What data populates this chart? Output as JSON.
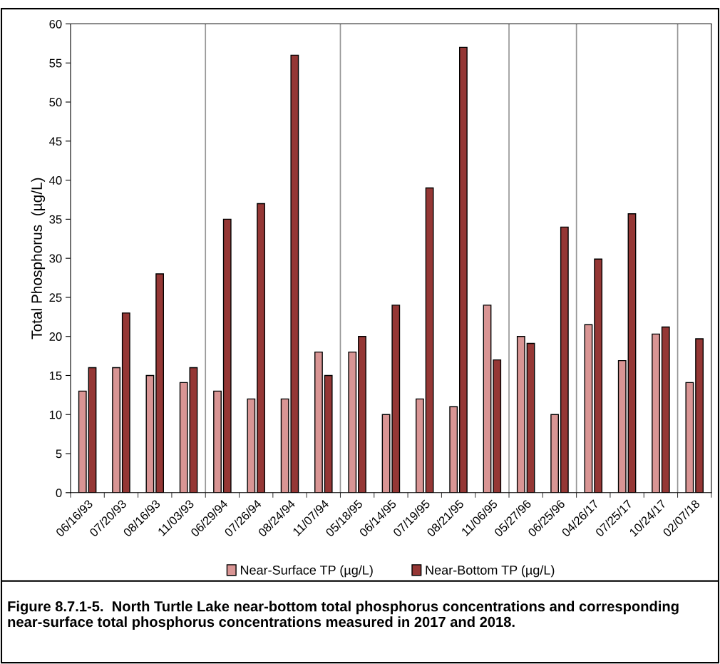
{
  "chart_data": {
    "type": "bar",
    "ylabel": "Total Phosphorus  (µg/L)",
    "categories": [
      "06/16/93",
      "07/20/93",
      "08/16/93",
      "11/03/93",
      "06/29/94",
      "07/26/94",
      "08/24/94",
      "11/07/94",
      "05/18/95",
      "06/14/95",
      "07/19/95",
      "08/21/95",
      "11/06/95",
      "05/27/96",
      "06/25/96",
      "04/26/17",
      "07/25/17",
      "10/24/17",
      "02/07/18"
    ],
    "series": [
      {
        "name": "Near-Surface TP (µg/L)",
        "color": "#d99594",
        "values": [
          13,
          16,
          15,
          14.1,
          13,
          12,
          12,
          18,
          18,
          10,
          12,
          11,
          24,
          20,
          10,
          21.5,
          16.9,
          20.3,
          14.1
        ]
      },
      {
        "name": "Near-Bottom TP (µg/L)",
        "color": "#953735",
        "values": [
          16,
          23,
          28,
          16,
          35,
          37,
          56,
          15,
          20,
          24,
          39,
          57,
          17,
          19.1,
          34,
          29.9,
          35.7,
          21.2,
          19.7
        ]
      }
    ],
    "ylim": [
      0,
      60
    ],
    "yticks": [
      0,
      5,
      10,
      15,
      20,
      25,
      30,
      35,
      40,
      45,
      50,
      55,
      60
    ],
    "grid": false,
    "legend": "bottom",
    "annotations": [
      "Figure 8.7.1-5.  North Turtle Lake near-bottom total phosphorus concentrations and corresponding near-surface total phosphorus concentrations measured in 2017 and 2018."
    ]
  }
}
